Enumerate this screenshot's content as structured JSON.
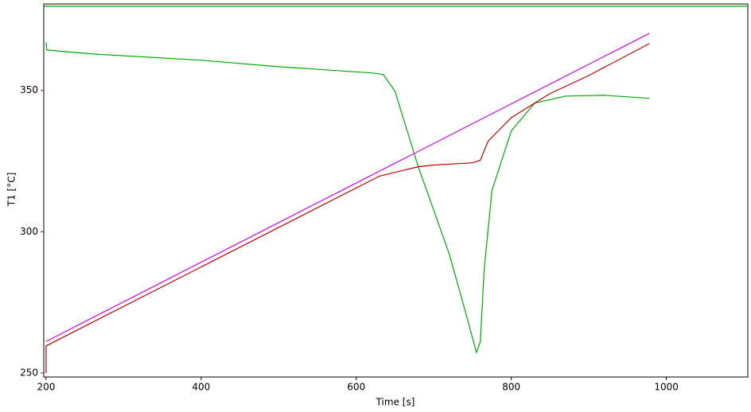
{
  "chart_data": {
    "type": "line",
    "x_label": "Time [s]",
    "y_label": "T1  [°C]",
    "y_label_color": "#e00000",
    "xlim": [
      197,
      1105
    ],
    "ylim": [
      248.6,
      380.6
    ],
    "xticks": [
      200,
      400,
      600,
      800,
      1000
    ],
    "yticks": [
      250,
      300,
      350
    ],
    "grid": false,
    "series": [
      {
        "color": "#00a800",
        "x": [
          197,
          1105
        ],
        "values": [
          379.8,
          379.8
        ]
      },
      {
        "color": "#00a800",
        "x": [
          200,
          201,
          260,
          400,
          500,
          620,
          635,
          650,
          680,
          720,
          740,
          755,
          760,
          765,
          775,
          800,
          830,
          870,
          920,
          978
        ],
        "values": [
          367,
          364.3,
          362.9,
          360.7,
          358.4,
          356.2,
          355.6,
          349.7,
          323,
          292.1,
          272.5,
          257.3,
          261,
          286.5,
          314.6,
          335.7,
          345.5,
          348,
          348.3,
          347.2
        ]
      },
      {
        "color": "#d000ff",
        "x": [
          200,
          978
        ],
        "values": [
          261.2,
          370.2
        ]
      },
      {
        "color": "#c00000",
        "x": [
          200,
          200,
          630,
          680,
          700,
          750,
          760,
          770,
          800,
          850,
          900,
          978
        ],
        "values": [
          250,
          259.6,
          319.7,
          323,
          323.6,
          324.4,
          325.3,
          332,
          340.4,
          348.9,
          355.3,
          366.6
        ]
      }
    ]
  }
}
